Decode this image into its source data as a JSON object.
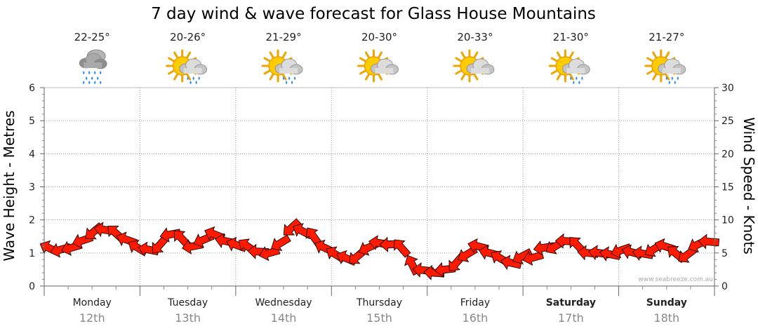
{
  "chart_data": {
    "type": "line",
    "title": "7 day wind & wave forecast for Glass House Mountains",
    "ylabel": "Wave Height - Metres",
    "y2label": "Wind Speed - Knots",
    "ylim": [
      0,
      6
    ],
    "y2lim": [
      0,
      30
    ],
    "yticks": [
      "0",
      "1",
      "2",
      "3",
      "4",
      "5",
      "6"
    ],
    "y2ticks": [
      "0",
      "5",
      "10",
      "15",
      "20",
      "25",
      "30"
    ],
    "grid": true,
    "days": [
      {
        "name": "Monday",
        "date": "12th",
        "temp": "22-25°",
        "icon": "rain-cloud-icon",
        "bold": false
      },
      {
        "name": "Tuesday",
        "date": "13th",
        "temp": "20-26°",
        "icon": "sun-cloud-rain-icon",
        "bold": false
      },
      {
        "name": "Wednesday",
        "date": "14th",
        "temp": "21-29°",
        "icon": "sun-cloud-rain-icon",
        "bold": false
      },
      {
        "name": "Thursday",
        "date": "15th",
        "temp": "20-30°",
        "icon": "sun-cloud-icon",
        "bold": false
      },
      {
        "name": "Friday",
        "date": "16th",
        "temp": "20-33°",
        "icon": "sun-cloud-icon",
        "bold": false
      },
      {
        "name": "Saturday",
        "date": "17th",
        "temp": "21-30°",
        "icon": "sun-cloud-rain-icon",
        "bold": true
      },
      {
        "name": "Sunday",
        "date": "18th",
        "temp": "21-27°",
        "icon": "sun-cloud-rain-icon",
        "bold": true
      }
    ],
    "wind_series": {
      "name": "Wind Speed",
      "unit": "knots",
      "values": [
        5.7,
        5.5,
        5.8,
        6.9,
        8.2,
        8.5,
        8.0,
        7.0,
        5.8,
        5.5,
        6.2,
        7.8,
        7.2,
        6.0,
        7.0,
        7.8,
        6.8,
        6.2,
        6.0,
        5.2,
        5.0,
        6.5,
        8.8,
        8.3,
        7.5,
        5.8,
        4.8,
        4.2,
        4.5,
        5.8,
        6.5,
        6.3,
        5.8,
        3.2,
        2.4,
        2.0,
        2.5,
        3.5,
        4.8,
        6.0,
        5.0,
        4.2,
        3.5,
        4.5,
        4.3,
        5.8,
        6.0,
        6.8,
        6.2,
        5.0,
        5.0,
        4.8,
        5.4,
        5.1,
        4.9,
        5.6,
        6.0,
        4.9,
        4.7,
        6.3,
        6.7
      ]
    },
    "watermark": "www.seabreeze.com.au"
  }
}
